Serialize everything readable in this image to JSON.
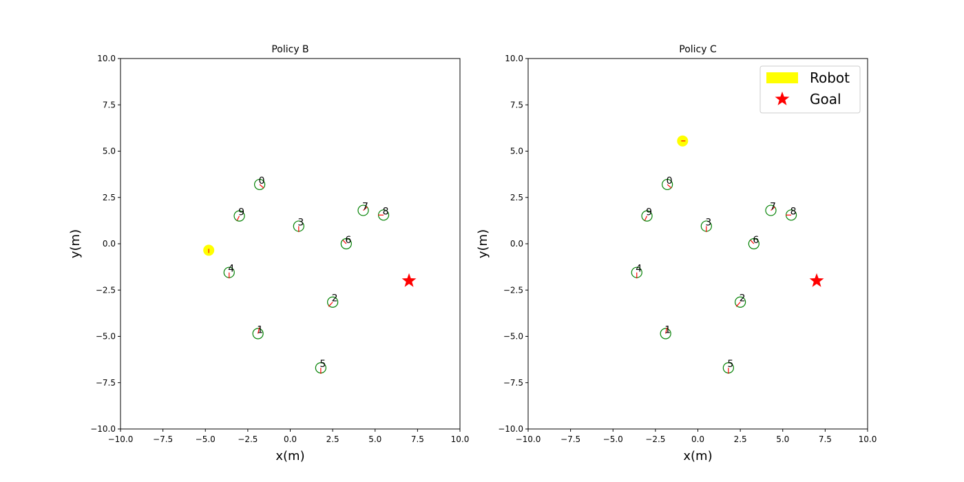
{
  "chart_data": [
    {
      "type": "scatter",
      "title": "Policy B",
      "xlabel": "x(m)",
      "ylabel": "y(m)",
      "xlim": [
        -10,
        10
      ],
      "ylim": [
        -10,
        10
      ],
      "xticks": [
        "−10.0",
        "−7.5",
        "−5.0",
        "−2.5",
        "0.0",
        "2.5",
        "5.0",
        "7.5",
        "10.0"
      ],
      "yticks": [
        "−10.0",
        "−7.5",
        "−5.0",
        "−2.5",
        "0.0",
        "2.5",
        "5.0",
        "7.5",
        "10.0"
      ],
      "grid": false,
      "legend": null,
      "robot": {
        "x": -4.8,
        "y": -0.35,
        "heading": "down",
        "color": "#ffff00"
      },
      "goal": {
        "x": 7.0,
        "y": -2.0,
        "color": "#ff0000"
      },
      "humans": [
        {
          "id": "0",
          "x": -1.8,
          "y": 3.2,
          "dx": 0.15,
          "dy": -0.12
        },
        {
          "id": "1",
          "x": -1.9,
          "y": -4.85,
          "dx": 0.05,
          "dy": 0.2
        },
        {
          "id": "2",
          "x": 2.5,
          "y": -3.15,
          "dx": -0.15,
          "dy": -0.15
        },
        {
          "id": "3",
          "x": 0.5,
          "y": 0.95,
          "dx": 0.0,
          "dy": -0.2
        },
        {
          "id": "4",
          "x": -3.6,
          "y": -1.55,
          "dx": 0.0,
          "dy": -0.2
        },
        {
          "id": "5",
          "x": 1.8,
          "y": -6.7,
          "dx": 0.0,
          "dy": -0.2
        },
        {
          "id": "6",
          "x": 3.3,
          "y": 0.0,
          "dx": -0.12,
          "dy": 0.12
        },
        {
          "id": "7",
          "x": 4.3,
          "y": 1.8,
          "dx": 0.15,
          "dy": 0.12
        },
        {
          "id": "8",
          "x": 5.5,
          "y": 1.55,
          "dx": -0.2,
          "dy": 0.0
        },
        {
          "id": "9",
          "x": -3.0,
          "y": 1.5,
          "dx": -0.08,
          "dy": -0.15
        }
      ],
      "colors": {
        "human_edge": "#008000",
        "human_arrow": "#ff0000"
      }
    },
    {
      "type": "scatter",
      "title": "Policy C",
      "xlabel": "x(m)",
      "ylabel": "y(m)",
      "xlim": [
        -10,
        10
      ],
      "ylim": [
        -10,
        10
      ],
      "xticks": [
        "−10.0",
        "−7.5",
        "−5.0",
        "−2.5",
        "0.0",
        "2.5",
        "5.0",
        "7.5",
        "10.0"
      ],
      "yticks": [
        "−10.0",
        "−7.5",
        "−5.0",
        "−2.5",
        "0.0",
        "2.5",
        "5.0",
        "7.5",
        "10.0"
      ],
      "grid": false,
      "legend": "top-right",
      "legend_entries": [
        {
          "label": "Robot",
          "kind": "patch",
          "color": "#ffff00"
        },
        {
          "label": "Goal",
          "kind": "star",
          "color": "#ff0000"
        }
      ],
      "robot": {
        "x": -0.9,
        "y": 5.55,
        "heading": "right",
        "color": "#ffff00"
      },
      "goal": {
        "x": 7.0,
        "y": -2.0,
        "color": "#ff0000"
      },
      "humans": [
        {
          "id": "0",
          "x": -1.8,
          "y": 3.2,
          "dx": 0.15,
          "dy": -0.12
        },
        {
          "id": "1",
          "x": -1.9,
          "y": -4.85,
          "dx": 0.05,
          "dy": 0.2
        },
        {
          "id": "2",
          "x": 2.5,
          "y": -3.15,
          "dx": -0.15,
          "dy": -0.15
        },
        {
          "id": "3",
          "x": 0.5,
          "y": 0.95,
          "dx": 0.0,
          "dy": -0.2
        },
        {
          "id": "4",
          "x": -3.6,
          "y": -1.55,
          "dx": 0.0,
          "dy": -0.2
        },
        {
          "id": "5",
          "x": 1.8,
          "y": -6.7,
          "dx": 0.0,
          "dy": -0.2
        },
        {
          "id": "6",
          "x": 3.3,
          "y": 0.0,
          "dx": -0.12,
          "dy": 0.12
        },
        {
          "id": "7",
          "x": 4.3,
          "y": 1.8,
          "dx": 0.15,
          "dy": 0.12
        },
        {
          "id": "8",
          "x": 5.5,
          "y": 1.55,
          "dx": -0.2,
          "dy": 0.0
        },
        {
          "id": "9",
          "x": -3.0,
          "y": 1.5,
          "dx": -0.08,
          "dy": -0.15
        }
      ],
      "colors": {
        "human_edge": "#008000",
        "human_arrow": "#ff0000"
      }
    }
  ]
}
